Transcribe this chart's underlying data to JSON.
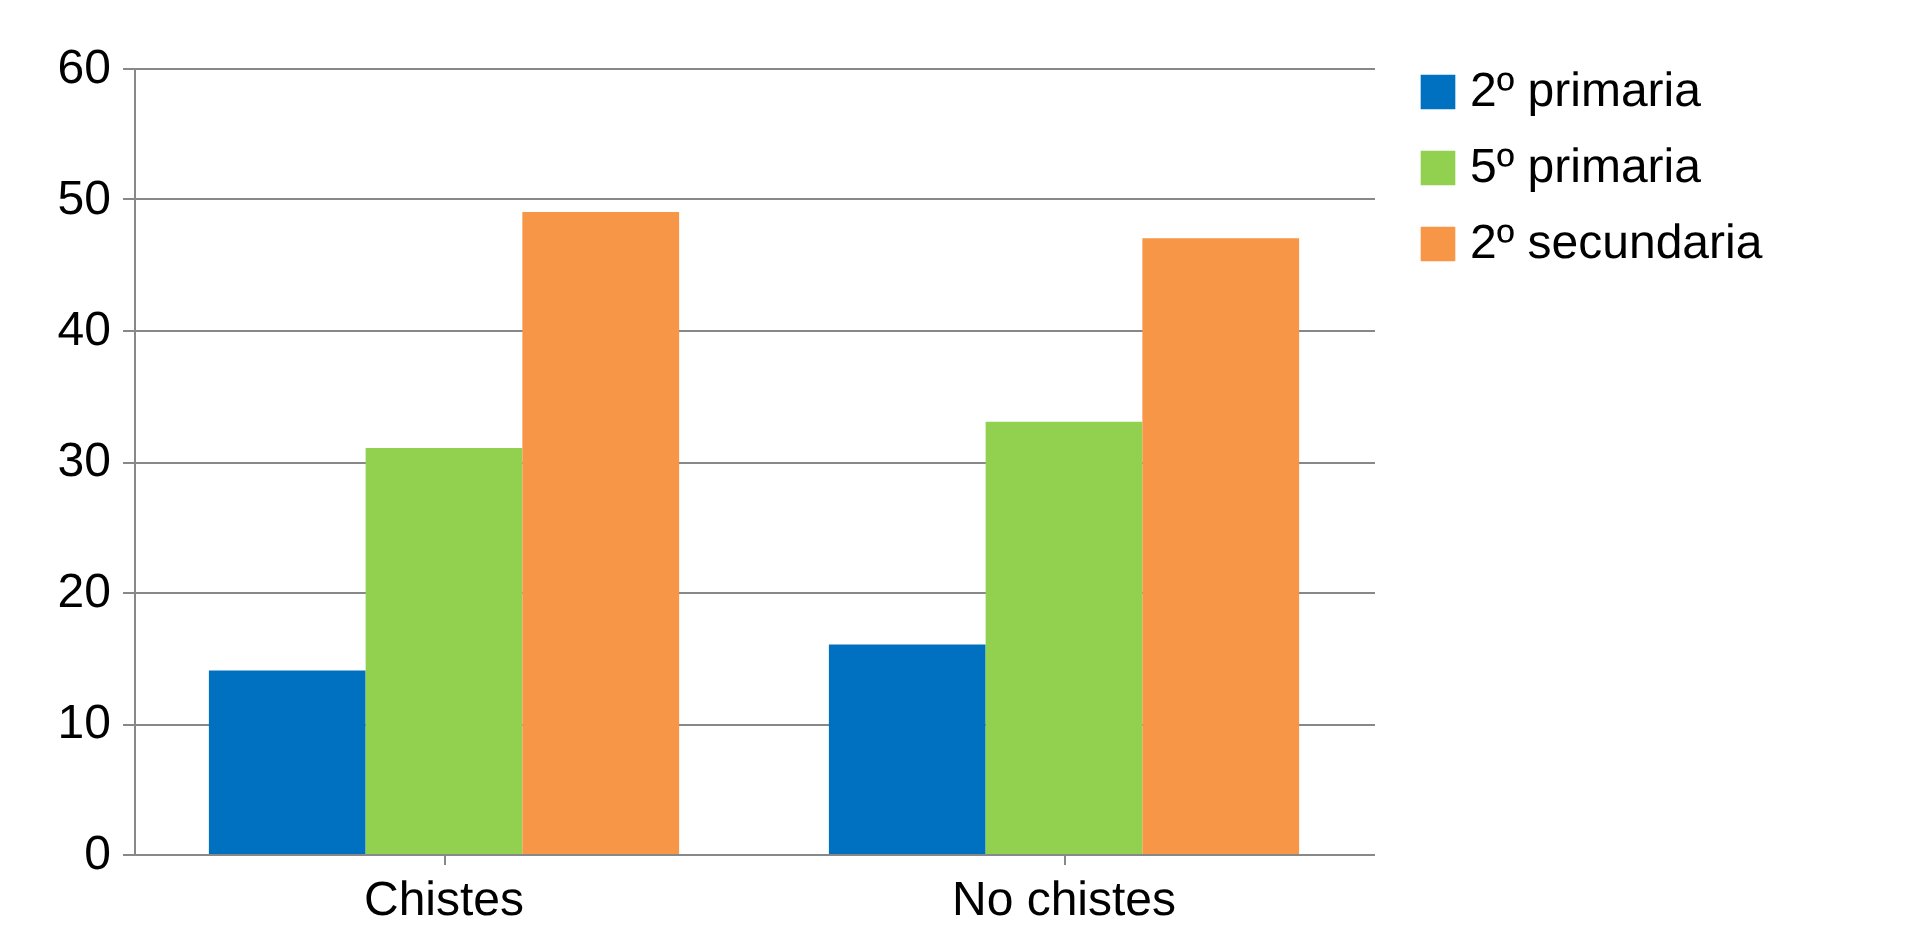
{
  "chart_data": {
    "type": "bar",
    "categories": [
      "Chistes",
      "No chistes"
    ],
    "series": [
      {
        "name": "2º primaria",
        "color": "#0070c0",
        "values": [
          14,
          16
        ]
      },
      {
        "name": "5º primaria",
        "color": "#92d050",
        "values": [
          31,
          33
        ]
      },
      {
        "name": "2º secundaria",
        "color": "#f79646",
        "values": [
          49,
          47
        ]
      }
    ],
    "ylim": [
      0,
      60
    ],
    "yticks": [
      0,
      10,
      20,
      30,
      40,
      50,
      60
    ],
    "grid": "y",
    "legend": "right"
  }
}
